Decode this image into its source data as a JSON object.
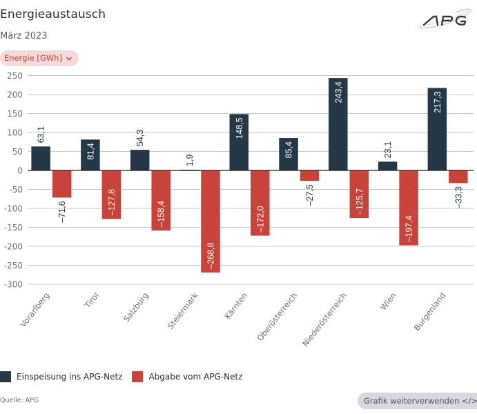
{
  "header": {
    "title": "Energieaustausch",
    "subtitle": "März 2023",
    "unit_selector": {
      "label": "Energie [GWh]",
      "icon": "chevron-down-icon"
    },
    "logo": {
      "text": "APG",
      "icon": "apg-logo"
    }
  },
  "colors": {
    "einspeisung": "#243847",
    "abgabe": "#c9433a",
    "grid": "#c8c8c8",
    "zero_line": "#1a1a1a",
    "accent_light": "#f6d9d9",
    "accent": "#c6413b"
  },
  "chart_data": {
    "type": "bar",
    "title": "Energieaustausch",
    "subtitle": "März 2023",
    "xlabel": "",
    "ylabel": "Energie [GWh]",
    "ylim": [
      -300,
      250
    ],
    "yticks": [
      250,
      200,
      150,
      100,
      50,
      0,
      -50,
      -100,
      -150,
      -200,
      -250,
      -300
    ],
    "ytick_labels": [
      "250",
      "200",
      "150",
      "100",
      "50",
      "0",
      "-50",
      "-100",
      "-150",
      "-200",
      "-250",
      "-300"
    ],
    "grid": true,
    "legend_position": "bottom-left",
    "categories": [
      "Vorarlberg",
      "Tirol",
      "Salzburg",
      "Steiermark",
      "Kärnten",
      "Oberösterreich",
      "Niederösterreich",
      "Wien",
      "Burgenland"
    ],
    "series": [
      {
        "name": "Einspeisung ins APG-Netz",
        "color": "#243847",
        "values": [
          63.1,
          81.4,
          54.3,
          1.9,
          148.5,
          85.4,
          243.4,
          23.1,
          217.3
        ],
        "labels": [
          "63,1",
          "81,4",
          "54,3",
          "1,9",
          "148,5",
          "85,4",
          "243,4",
          "23,1",
          "217,3"
        ]
      },
      {
        "name": "Abgabe vom APG-Netz",
        "color": "#c9433a",
        "values": [
          -71.6,
          -127.8,
          -158.4,
          -268.8,
          -172.0,
          -27.5,
          -125.7,
          -197.4,
          -33.3
        ],
        "labels": [
          "–71,6",
          "–127,8",
          "–158,4",
          "–268,8",
          "–172,0",
          "–27,5",
          "–125,7",
          "–197,4",
          "–33,3"
        ]
      }
    ]
  },
  "legend": [
    {
      "label": "Einspeisung ins APG-Netz",
      "color": "#243847"
    },
    {
      "label": "Abgabe vom APG-Netz",
      "color": "#c9433a"
    }
  ],
  "footer": {
    "source": "Quelle: APG",
    "reuse_button": "Grafik weiterverwenden </>"
  }
}
